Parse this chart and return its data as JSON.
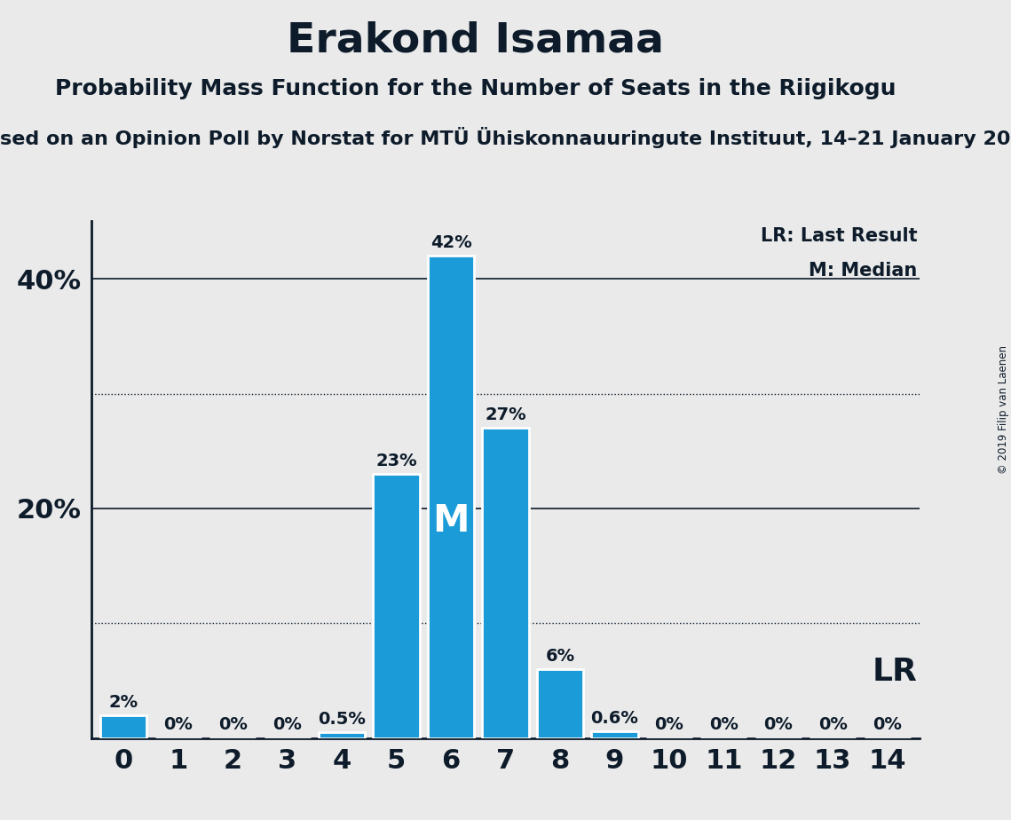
{
  "title": "Erakond Isamaa",
  "subtitle1": "Probability Mass Function for the Number of Seats in the Riigikogu",
  "subtitle2": "sed on an Opinion Poll by Norstat for MTÜ Ühiskonnauuringute Instituut, 14–21 January 20",
  "copyright": "© 2019 Filip van Laenen",
  "categories": [
    0,
    1,
    2,
    3,
    4,
    5,
    6,
    7,
    8,
    9,
    10,
    11,
    12,
    13,
    14
  ],
  "values": [
    2.0,
    0.0,
    0.0,
    0.0,
    0.5,
    23.0,
    42.0,
    27.0,
    6.0,
    0.6,
    0.0,
    0.0,
    0.0,
    0.0,
    0.0
  ],
  "labels": [
    "2%",
    "0%",
    "0%",
    "0%",
    "0.5%",
    "23%",
    "42%",
    "27%",
    "6%",
    "0.6%",
    "0%",
    "0%",
    "0%",
    "0%",
    "0%"
  ],
  "bar_color": "#1B9CD8",
  "bar_edge_color": "white",
  "median_bar": 6,
  "median_label": "M",
  "lr_label": "LR",
  "background_color": "#EAEAEA",
  "text_color": "#0D1B2A",
  "ylim": [
    0,
    45
  ],
  "solid_grid": [
    20,
    40
  ],
  "dotted_grid": [
    10,
    30
  ],
  "legend_lr": "LR: Last Result",
  "legend_m": "M: Median",
  "title_fontsize": 34,
  "subtitle1_fontsize": 18,
  "subtitle2_fontsize": 16,
  "bar_label_fontsize": 14,
  "ytick_fontsize": 22,
  "xtick_fontsize": 22
}
